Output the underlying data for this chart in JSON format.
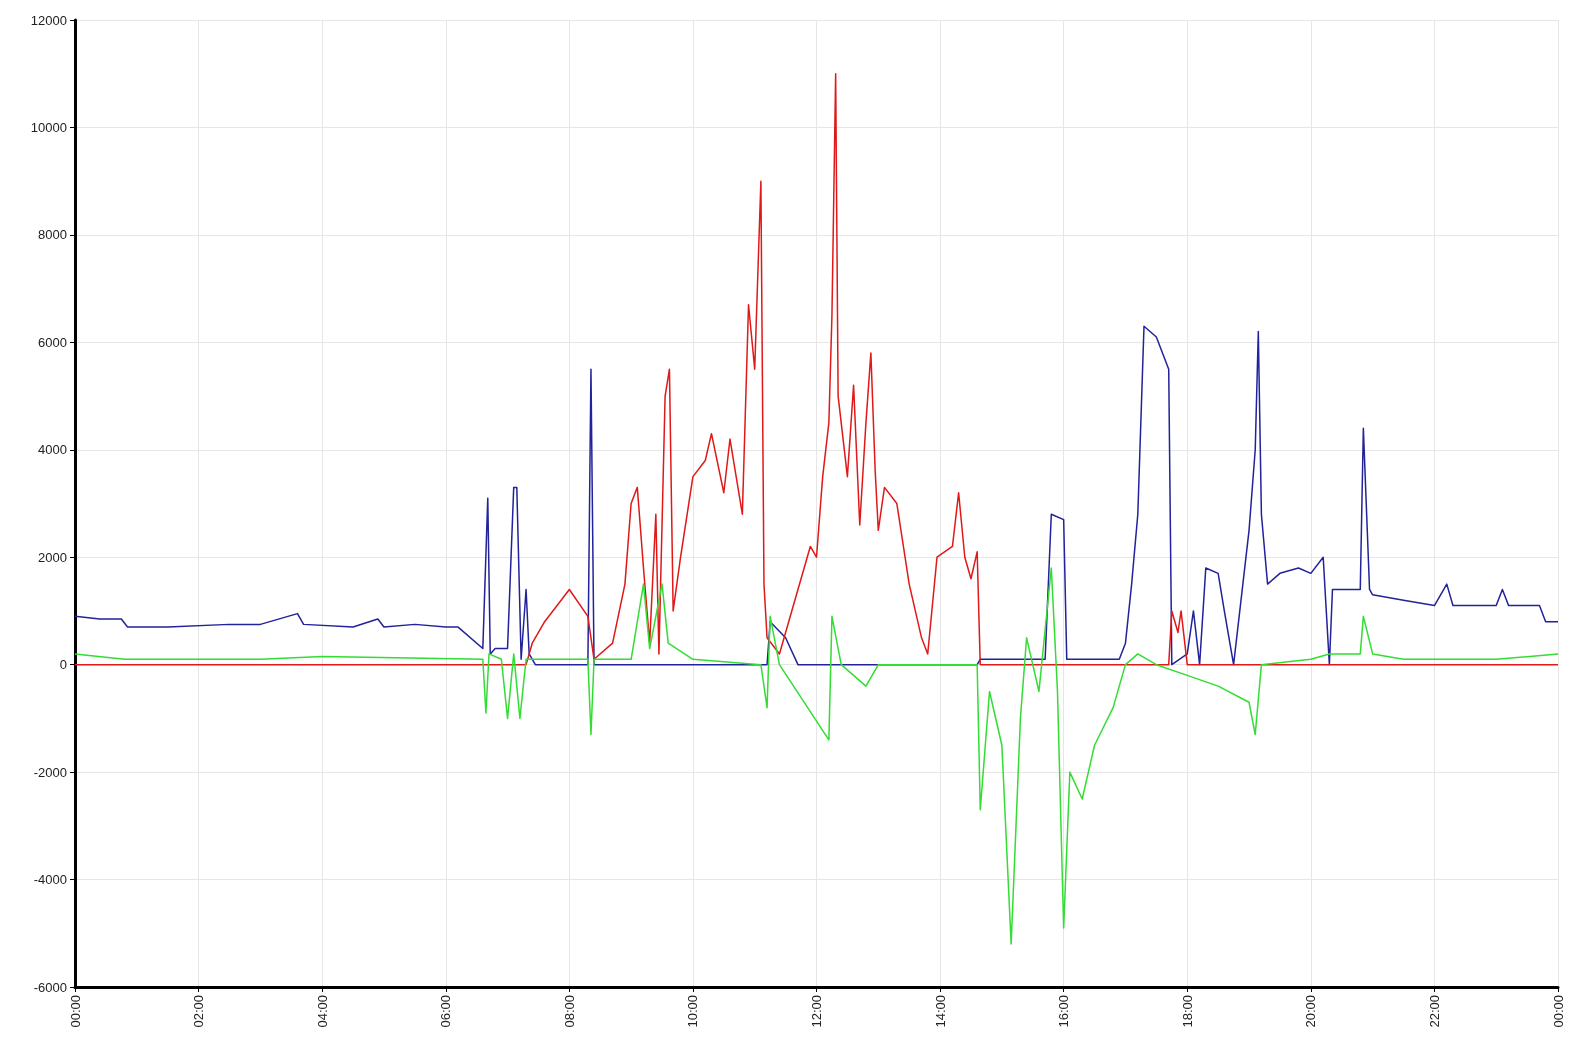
{
  "chart_data": {
    "type": "line",
    "xlim": [
      0,
      24
    ],
    "ylim": [
      -6000,
      12000
    ],
    "xticks": [
      {
        "value": 0,
        "label": "00:00"
      },
      {
        "value": 2,
        "label": "02:00"
      },
      {
        "value": 4,
        "label": "04:00"
      },
      {
        "value": 6,
        "label": "06:00"
      },
      {
        "value": 8,
        "label": "08:00"
      },
      {
        "value": 10,
        "label": "10:00"
      },
      {
        "value": 12,
        "label": "12:00"
      },
      {
        "value": 14,
        "label": "14:00"
      },
      {
        "value": 16,
        "label": "16:00"
      },
      {
        "value": 18,
        "label": "18:00"
      },
      {
        "value": 20,
        "label": "20:00"
      },
      {
        "value": 22,
        "label": "22:00"
      },
      {
        "value": 24,
        "label": "00:00"
      }
    ],
    "yticks": [
      -6000,
      -4000,
      -2000,
      0,
      2000,
      4000,
      6000,
      8000,
      10000,
      12000
    ],
    "grid": true,
    "marker": "none",
    "line_style": "solid",
    "series": [
      {
        "color": "#22229a",
        "x": [
          0,
          0.4,
          0.75,
          0.85,
          1.5,
          2.5,
          3.0,
          3.6,
          3.7,
          4.5,
          4.9,
          5.0,
          5.5,
          6.0,
          6.2,
          6.6,
          6.68,
          6.72,
          6.8,
          7.0,
          7.1,
          7.15,
          7.22,
          7.3,
          7.35,
          7.45,
          8.3,
          8.35,
          8.4,
          11.2,
          11.25,
          11.5,
          11.7,
          14.6,
          14.65,
          15.7,
          15.8,
          16.0,
          16.05,
          16.9,
          17.0,
          17.1,
          17.2,
          17.3,
          17.5,
          17.7,
          17.75,
          18.0,
          18.1,
          18.2,
          18.3,
          18.5,
          18.6,
          18.75,
          18.9,
          19.0,
          19.1,
          19.15,
          19.2,
          19.3,
          19.5,
          19.8,
          20.0,
          20.2,
          20.3,
          20.35,
          20.8,
          20.85,
          20.95,
          21.0,
          21.5,
          22.0,
          22.2,
          22.3,
          23.0,
          23.1,
          23.2,
          23.7,
          23.8,
          24
        ],
        "values": [
          900,
          850,
          850,
          700,
          700,
          750,
          750,
          950,
          750,
          700,
          850,
          700,
          750,
          700,
          700,
          300,
          3100,
          200,
          300,
          300,
          3300,
          3300,
          100,
          1400,
          200,
          0,
          0,
          5500,
          0,
          0,
          800,
          500,
          0,
          0,
          100,
          100,
          2800,
          2700,
          100,
          100,
          400,
          1500,
          2800,
          6300,
          6100,
          5500,
          0,
          200,
          1000,
          0,
          1800,
          1700,
          1000,
          0,
          1500,
          2500,
          4000,
          6200,
          2800,
          1500,
          1700,
          1800,
          1700,
          2000,
          0,
          1400,
          1400,
          4400,
          1400,
          1300,
          1200,
          1100,
          1500,
          1100,
          1100,
          1400,
          1100,
          1100,
          800,
          800
        ]
      },
      {
        "color": "#e01818",
        "x": [
          0,
          7.3,
          7.4,
          7.6,
          8.0,
          8.3,
          8.4,
          8.7,
          8.9,
          9.0,
          9.1,
          9.2,
          9.3,
          9.4,
          9.45,
          9.55,
          9.62,
          9.68,
          9.8,
          10.0,
          10.2,
          10.3,
          10.5,
          10.6,
          10.8,
          10.9,
          11.0,
          11.1,
          11.15,
          11.2,
          11.4,
          11.6,
          11.9,
          12.0,
          12.1,
          12.2,
          12.25,
          12.31,
          12.35,
          12.5,
          12.6,
          12.7,
          12.8,
          12.88,
          12.95,
          13.0,
          13.1,
          13.3,
          13.5,
          13.7,
          13.8,
          13.95,
          14.2,
          14.3,
          14.4,
          14.5,
          14.6,
          14.65,
          17.7,
          17.75,
          17.85,
          17.9,
          18.0,
          24
        ],
        "values": [
          0,
          0,
          400,
          800,
          1400,
          900,
          100,
          400,
          1500,
          3000,
          3300,
          1800,
          400,
          2800,
          200,
          5000,
          5500,
          1000,
          2000,
          3500,
          3800,
          4300,
          3200,
          4200,
          2800,
          6700,
          5500,
          9000,
          1500,
          500,
          200,
          1000,
          2200,
          2000,
          3500,
          4500,
          6500,
          11000,
          5000,
          3500,
          5200,
          2600,
          4500,
          5800,
          3600,
          2500,
          3300,
          3000,
          1500,
          500,
          200,
          2000,
          2200,
          3200,
          2000,
          1600,
          2100,
          0,
          0,
          1000,
          600,
          1000,
          0,
          0
        ]
      },
      {
        "color": "#33dd33",
        "x": [
          0,
          0.8,
          3.0,
          4.0,
          6.6,
          6.65,
          6.7,
          6.9,
          7.0,
          7.1,
          7.2,
          7.3,
          8.3,
          8.35,
          8.4,
          9.0,
          9.2,
          9.3,
          9.5,
          9.6,
          10.0,
          11.1,
          11.2,
          11.25,
          11.4,
          12.2,
          12.25,
          12.4,
          12.8,
          13.0,
          14.6,
          14.65,
          14.8,
          15.0,
          15.15,
          15.3,
          15.4,
          15.6,
          15.8,
          15.9,
          16.0,
          16.1,
          16.3,
          16.5,
          16.8,
          17.0,
          17.2,
          17.5,
          18.0,
          18.5,
          19.0,
          19.1,
          19.2,
          20.0,
          20.3,
          20.8,
          20.85,
          21.0,
          21.5,
          23.0,
          24
        ],
        "values": [
          200,
          100,
          100,
          150,
          100,
          -900,
          200,
          100,
          -1000,
          200,
          -1000,
          100,
          100,
          -1300,
          100,
          100,
          1500,
          300,
          1500,
          400,
          100,
          0,
          -800,
          900,
          0,
          -1400,
          900,
          0,
          -400,
          0,
          0,
          -2700,
          -500,
          -1500,
          -5200,
          -1000,
          500,
          -500,
          1800,
          -500,
          -4900,
          -2000,
          -2500,
          -1500,
          -800,
          0,
          200,
          0,
          -200,
          -400,
          -700,
          -1300,
          0,
          100,
          200,
          200,
          900,
          200,
          100,
          100,
          200
        ]
      }
    ]
  }
}
